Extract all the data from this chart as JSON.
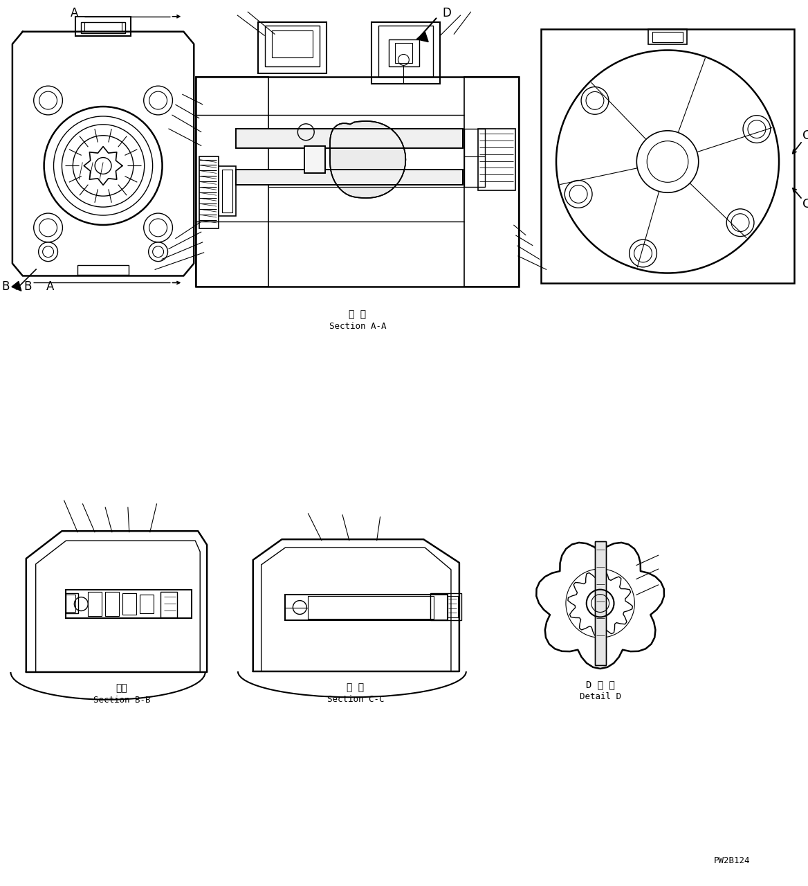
{
  "bg_color": "#ffffff",
  "fig_width": 11.68,
  "fig_height": 12.8,
  "dpi": 100,
  "section_aa_label_jp": "断 面",
  "section_aa_label_en": "Section A-A",
  "section_bb_label_jp": "断面",
  "section_bb_label_en": "Section B-B",
  "section_cc_label_jp": "断 面",
  "section_cc_label_en": "Section C-C",
  "detail_d_label_jp": "D 詳 細",
  "detail_d_label_en": "Detail D",
  "drawing_number": "PW2B124"
}
